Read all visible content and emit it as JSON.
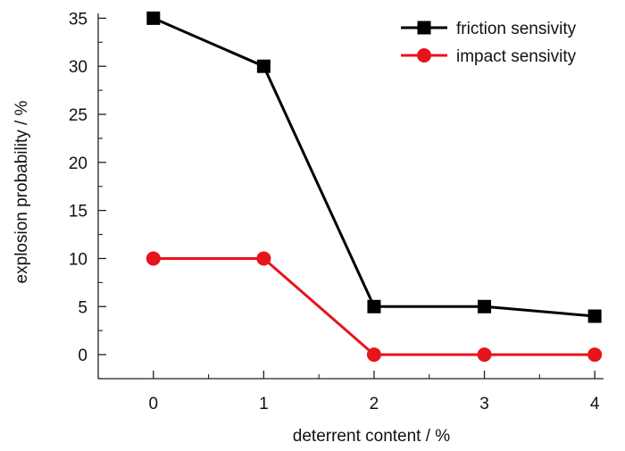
{
  "chart_data": {
    "type": "line",
    "title": "",
    "xlabel": "deterrent content / %",
    "ylabel": "explosion probability / %",
    "x": [
      0,
      1,
      2,
      3,
      4
    ],
    "xticks": [
      "0",
      "1",
      "2",
      "3",
      "4"
    ],
    "xlim": [
      -0.5,
      4.08
    ],
    "yticks": [
      "0",
      "5",
      "10",
      "15",
      "20",
      "25",
      "30",
      "35"
    ],
    "ylim": [
      -2.5,
      35.5
    ],
    "grid": false,
    "legend_position": "top-right",
    "series": [
      {
        "name": "friction sensivity",
        "color": "#000000",
        "marker": "square",
        "values": [
          35,
          30,
          5,
          5,
          4
        ]
      },
      {
        "name": "impact sensivity",
        "color": "#e8141b",
        "marker": "circle",
        "values": [
          10,
          10,
          0,
          0,
          0
        ]
      }
    ]
  }
}
